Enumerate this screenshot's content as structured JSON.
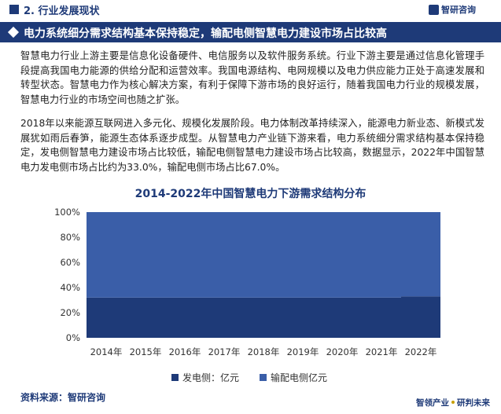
{
  "header": {
    "section_title": "2. 行业发展现状",
    "logo_text": "智研咨询"
  },
  "headline": "电力系统细分需求结构基本保持稳定，输配电侧智慧电力建设市场占比较高",
  "paragraphs": [
    "智慧电力行业上游主要是信息化设备硬件、电信服务以及软件服务系统。行业下游主要是通过信息化管理手段提高我国电力能源的供给分配和运营效率。我国电源结构、电网规模以及电力供应能力正处于高速发展和转型状态。智慧电力作为核心解决方案，有利于保障下游市场的良好运行，随着我国电力行业的规模发展，智慧电力行业的市场空间也随之扩张。",
    "2018年以来能源互联网进入多元化、规模化发展阶段。电力体制改革持续深入，能源电力新业态、新模式发展犹如雨后春笋，能源生态体系逐步成型。从智慧电力产业链下游来看，电力系统细分需求结构基本保持稳定，发电侧智慧电力建设市场占比较低，输配电侧智慧电力建设市场占比较高，数据显示，2022年中国智慧电力发电侧市场占比约为33.0%，输配电侧市场占比67.0%。"
  ],
  "chart_data": {
    "type": "bar",
    "stacked": true,
    "title": "2014-2022年中国智慧电力下游需求结构分布",
    "categories": [
      "2014年",
      "2015年",
      "2016年",
      "2017年",
      "2018年",
      "2019年",
      "2020年",
      "2021年",
      "2022年"
    ],
    "y_ticks": [
      "0%",
      "20%",
      "40%",
      "60%",
      "80%",
      "100%"
    ],
    "ylim": [
      0,
      100
    ],
    "series": [
      {
        "name": "发电侧：亿元",
        "color": "#1e3a78",
        "values": [
          32,
          32,
          32,
          32,
          32,
          32,
          32,
          32,
          33
        ]
      },
      {
        "name": "输配电侧亿元",
        "color": "#3a5ea8",
        "values": [
          68,
          68,
          68,
          68,
          68,
          68,
          68,
          68,
          67
        ]
      }
    ],
    "legend_position": "bottom"
  },
  "footer": {
    "source": "资料来源：智研咨询",
    "slogan_left": "智领产业",
    "slogan_right": "研判未来"
  }
}
